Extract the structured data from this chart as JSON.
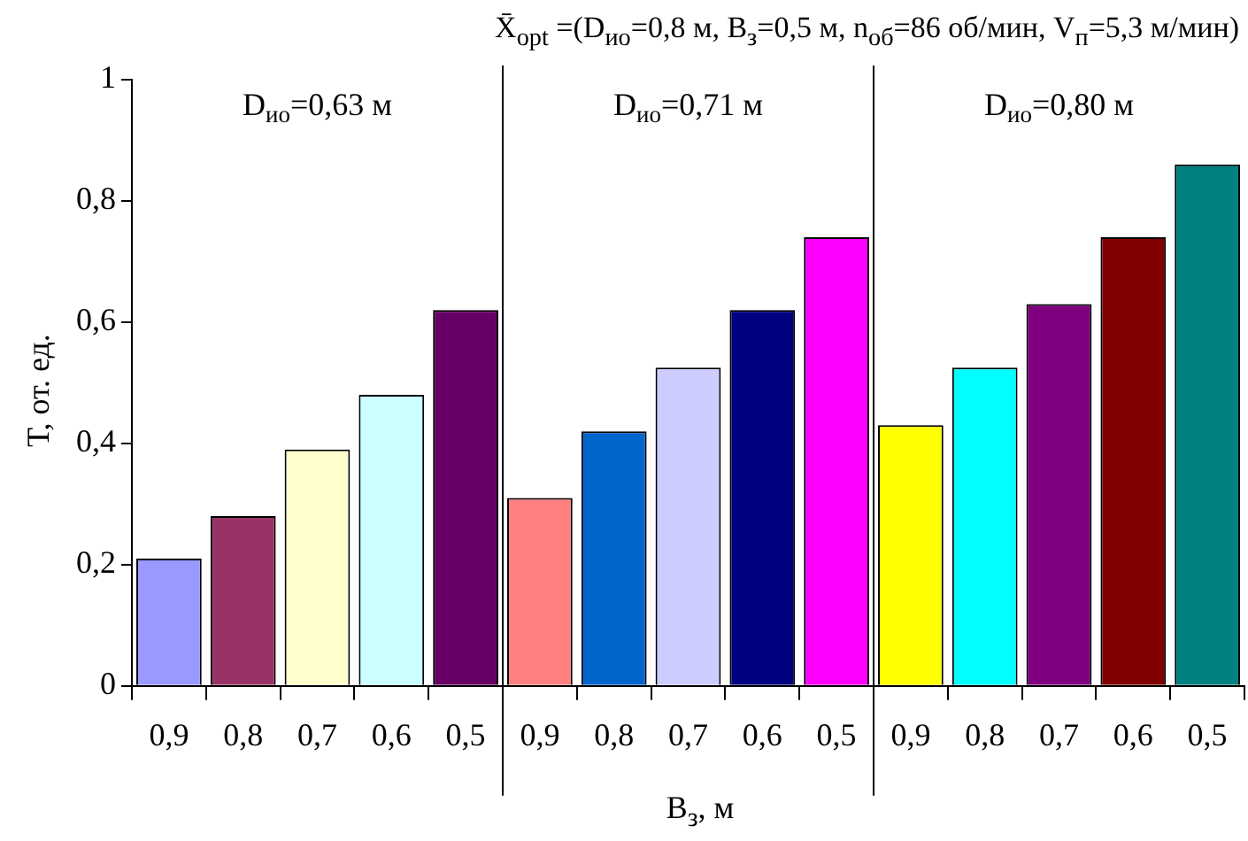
{
  "chart_data": {
    "type": "bar",
    "title": "X̄$_{opt}$ =(D$_{ио}$=0,8 м, В$_{з}$=0,5 м, n$_{об}$=86 об/мин, V$_{п}$=5,3 м/мин)",
    "xlabel": "В$_{з}$, м",
    "ylabel": "Т, от. ед.",
    "annotations": [
      "D$_{ио}$=0,63 м",
      "D$_{ио}$=0,71 м",
      "D$_{ио}$=0,80 м"
    ],
    "categories": [
      "0,9",
      "0,8",
      "0,7",
      "0,6",
      "0,5",
      "0,9",
      "0,8",
      "0,7",
      "0,6",
      "0,5",
      "0,9",
      "0,8",
      "0,7",
      "0,6",
      "0,5"
    ],
    "values": [
      0.21,
      0.28,
      0.39,
      0.48,
      0.62,
      0.31,
      0.42,
      0.525,
      0.62,
      0.74,
      0.43,
      0.525,
      0.63,
      0.74,
      0.86
    ],
    "colors": [
      "#9999ff",
      "#993366",
      "#ffffcc",
      "#ccffff",
      "#660066",
      "#ff8080",
      "#0066cc",
      "#ccccff",
      "#000080",
      "#ff00ff",
      "#ffff00",
      "#00ffff",
      "#800080",
      "#800000",
      "#008080"
    ],
    "ylim": [
      0,
      1
    ],
    "yticks": [
      {
        "value": 0,
        "label": "0"
      },
      {
        "value": 0.2,
        "label": "0,2"
      },
      {
        "value": 0.4,
        "label": "0,4"
      },
      {
        "value": 0.6,
        "label": "0,6"
      },
      {
        "value": 0.8,
        "label": "0,8"
      },
      {
        "value": 1,
        "label": "1"
      }
    ],
    "grid": false,
    "legend": false
  }
}
